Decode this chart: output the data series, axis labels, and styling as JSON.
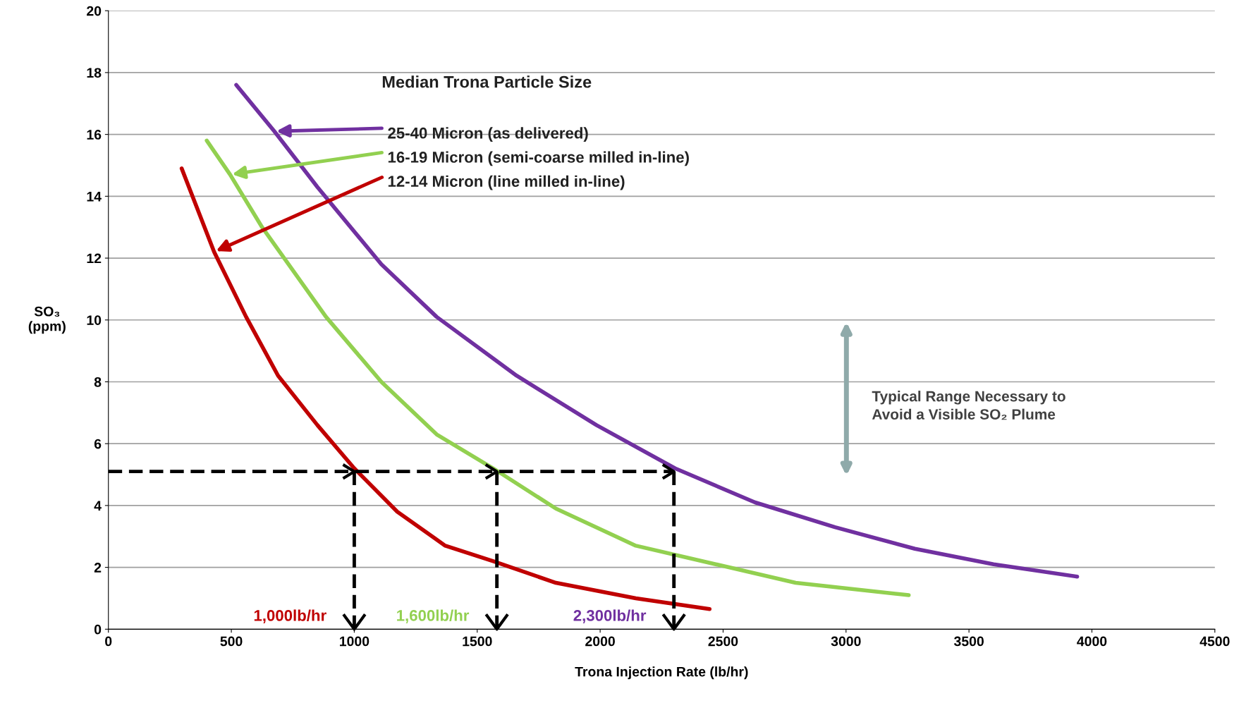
{
  "chart_data": {
    "type": "line",
    "xlabel": "Trona Injection Rate (lb/hr)",
    "ylabel": "SO₃\n(ppm)",
    "xlim": [
      0,
      4500
    ],
    "xticks": [
      0,
      500,
      1000,
      1500,
      2000,
      2500,
      3000,
      3500,
      4000,
      4500
    ],
    "ylim": [
      0,
      20
    ],
    "yticks": [
      0,
      2,
      4,
      6,
      8,
      10,
      12,
      14,
      16,
      18,
      20
    ],
    "grid": "y",
    "marker": "none",
    "series": [
      {
        "color": "#c00000",
        "x": [
          298,
          430,
          560,
          690,
          850,
          1000,
          1175,
          1370,
          1565,
          1820,
          2145,
          2445
        ],
        "values": [
          14.9,
          12.2,
          10.1,
          8.2,
          6.6,
          5.2,
          3.8,
          2.7,
          2.2,
          1.5,
          1.0,
          0.65
        ]
      },
      {
        "color": "#92d050",
        "x": [
          400,
          495,
          625,
          885,
          1110,
          1335,
          1565,
          1820,
          2145,
          2470,
          2795,
          3255
        ],
        "values": [
          15.8,
          14.7,
          13.0,
          10.1,
          8.0,
          6.3,
          5.2,
          3.9,
          2.7,
          2.1,
          1.5,
          1.1
        ]
      },
      {
        "color": "#7030a0",
        "x": [
          520,
          675,
          850,
          1110,
          1335,
          1660,
          1985,
          2305,
          2630,
          2955,
          3280,
          3600,
          3940
        ],
        "values": [
          17.6,
          16.1,
          14.3,
          11.8,
          10.1,
          8.2,
          6.6,
          5.2,
          4.1,
          3.3,
          2.6,
          2.1,
          1.7
        ]
      },
      {
        "color": "#000000",
        "line_style": "dashed",
        "x": [
          0,
          2300
        ],
        "values": [
          5.1,
          5.1
        ]
      },
      {
        "color": "#000000",
        "line_style": "dashed",
        "x": [
          1000,
          1000
        ],
        "values": [
          5.1,
          0
        ]
      },
      {
        "color": "#000000",
        "line_style": "dashed",
        "x": [
          1580,
          1580
        ],
        "values": [
          5.1,
          0
        ]
      },
      {
        "color": "#000000",
        "line_style": "dashed",
        "x": [
          2300,
          2300
        ],
        "values": [
          5.1,
          0
        ]
      }
    ],
    "annotations": [
      "Median Trona Particle Size",
      "Typical Range Necessary to\nAvoid a Visible SO₂ Plume",
      {
        "text": "25-40 Micron (as delivered)",
        "x": 675,
        "y": 16.1
      },
      {
        "text": "16-19 Micron (semi-coarse milled in-line)",
        "x": 495,
        "y": 14.7
      },
      {
        "text": "12-14 Micron (line milled in-line)",
        "x": 430,
        "y": 12.2
      },
      {
        "text": "1,000lb/hr",
        "x": 1000,
        "y": 0
      },
      {
        "text": "1,600lb/hr",
        "x": 1580,
        "y": 0
      },
      {
        "text": "2,300lb/hr",
        "x": 2300,
        "y": 0
      }
    ]
  }
}
